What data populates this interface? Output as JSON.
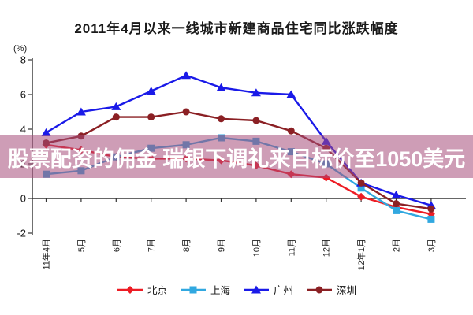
{
  "title": "2011年4月以来一线城市新建商品住宅同比涨跌幅度",
  "banner": {
    "text": "股票配资的佣金 瑞银下调礼来目标价至1050美元",
    "bg_color": "rgba(166,77,122,0.55)",
    "text_color": "#ffffff"
  },
  "chart_data": {
    "type": "line",
    "title": "2011年4月以来一线城市新建商品住宅同比涨跌幅度",
    "xlabel": "",
    "ylabel": "(%)",
    "grid": false,
    "legend_position": "bottom",
    "y_axis": {
      "unit": "(%)",
      "ticks": [
        8,
        6,
        4,
        2,
        0,
        -2
      ],
      "min": -2,
      "max": 8
    },
    "categories": [
      "11年4月",
      "5月",
      "6月",
      "7月",
      "8月",
      "9月",
      "10月",
      "11月",
      "12月",
      "12年1月",
      "2月",
      "3月"
    ],
    "series": [
      {
        "key": "beijing",
        "name": "北京",
        "color": "#ed1c24",
        "marker": "diamond",
        "values": [
          3.1,
          2.8,
          2.4,
          2.3,
          2.3,
          2.2,
          1.9,
          1.4,
          1.2,
          0.1,
          -0.5,
          -0.9
        ]
      },
      {
        "key": "shanghai",
        "name": "上海",
        "color": "#31a8e0",
        "marker": "square",
        "values": [
          1.4,
          1.6,
          2.4,
          2.9,
          3.1,
          3.5,
          3.3,
          2.7,
          2.0,
          0.6,
          -0.7,
          -1.2
        ]
      },
      {
        "key": "guangzhou",
        "name": "广州",
        "color": "#1a1ae8",
        "marker": "triangle",
        "values": [
          3.8,
          5.0,
          5.3,
          6.2,
          7.1,
          6.4,
          6.1,
          6.0,
          3.3,
          0.9,
          0.2,
          -0.4
        ]
      },
      {
        "key": "shenzhen",
        "name": "深圳",
        "color": "#8b2024",
        "marker": "circle",
        "values": [
          3.2,
          3.6,
          4.7,
          4.7,
          5.0,
          4.6,
          4.5,
          3.9,
          2.9,
          0.9,
          -0.3,
          -0.6
        ]
      }
    ]
  }
}
